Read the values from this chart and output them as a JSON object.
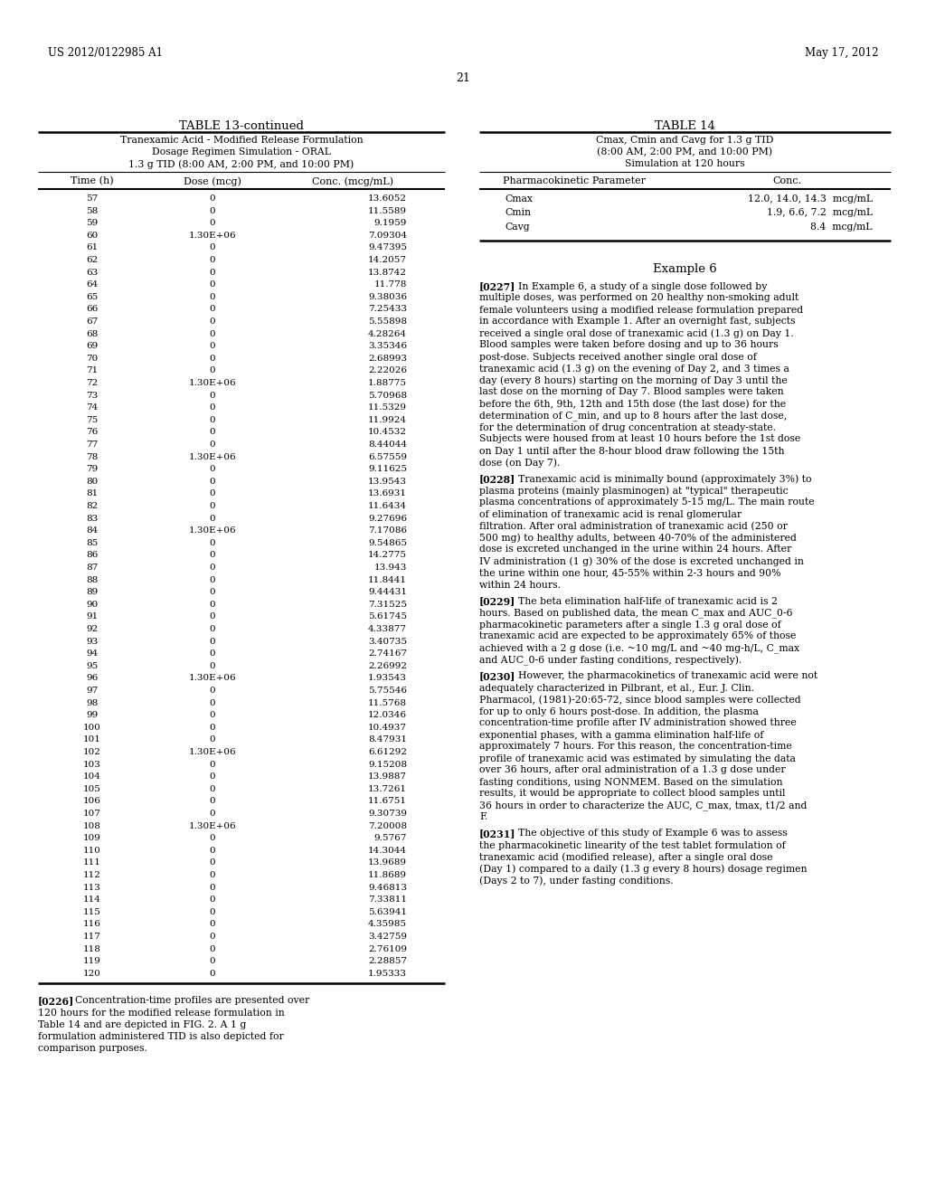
{
  "header_left": "US 2012/0122985 A1",
  "header_right": "May 17, 2012",
  "page_number": "21",
  "table13_title": "TABLE 13-continued",
  "table13_subtitle1": "Tranexamic Acid - Modified Release Formulation",
  "table13_subtitle2": "Dosage Regimen Simulation - ORAL",
  "table13_subtitle3": "1.3 g TID (8:00 AM, 2:00 PM, and 10:00 PM)",
  "table13_col1": "Time (h)",
  "table13_col2": "Dose (mcg)",
  "table13_col3": "Conc. (mcg/mL)",
  "table13_data": [
    [
      57,
      "0",
      "13.6052"
    ],
    [
      58,
      "0",
      "11.5589"
    ],
    [
      59,
      "0",
      "9.1959"
    ],
    [
      60,
      "1.30E+06",
      "7.09304"
    ],
    [
      61,
      "0",
      "9.47395"
    ],
    [
      62,
      "0",
      "14.2057"
    ],
    [
      63,
      "0",
      "13.8742"
    ],
    [
      64,
      "0",
      "11.778"
    ],
    [
      65,
      "0",
      "9.38036"
    ],
    [
      66,
      "0",
      "7.25433"
    ],
    [
      67,
      "0",
      "5.55898"
    ],
    [
      68,
      "0",
      "4.28264"
    ],
    [
      69,
      "0",
      "3.35346"
    ],
    [
      70,
      "0",
      "2.68993"
    ],
    [
      71,
      "0",
      "2.22026"
    ],
    [
      72,
      "1.30E+06",
      "1.88775"
    ],
    [
      73,
      "0",
      "5.70968"
    ],
    [
      74,
      "0",
      "11.5329"
    ],
    [
      75,
      "0",
      "11.9924"
    ],
    [
      76,
      "0",
      "10.4532"
    ],
    [
      77,
      "0",
      "8.44044"
    ],
    [
      78,
      "1.30E+06",
      "6.57559"
    ],
    [
      79,
      "0",
      "9.11625"
    ],
    [
      80,
      "0",
      "13.9543"
    ],
    [
      81,
      "0",
      "13.6931"
    ],
    [
      82,
      "0",
      "11.6434"
    ],
    [
      83,
      "0",
      "9.27696"
    ],
    [
      84,
      "1.30E+06",
      "7.17086"
    ],
    [
      85,
      "0",
      "9.54865"
    ],
    [
      86,
      "0",
      "14.2775"
    ],
    [
      87,
      "0",
      "13.943"
    ],
    [
      88,
      "0",
      "11.8441"
    ],
    [
      89,
      "0",
      "9.44431"
    ],
    [
      90,
      "0",
      "7.31525"
    ],
    [
      91,
      "0",
      "5.61745"
    ],
    [
      92,
      "0",
      "4.33877"
    ],
    [
      93,
      "0",
      "3.40735"
    ],
    [
      94,
      "0",
      "2.74167"
    ],
    [
      95,
      "0",
      "2.26992"
    ],
    [
      96,
      "1.30E+06",
      "1.93543"
    ],
    [
      97,
      "0",
      "5.75546"
    ],
    [
      98,
      "0",
      "11.5768"
    ],
    [
      99,
      "0",
      "12.0346"
    ],
    [
      100,
      "0",
      "10.4937"
    ],
    [
      101,
      "0",
      "8.47931"
    ],
    [
      102,
      "1.30E+06",
      "6.61292"
    ],
    [
      103,
      "0",
      "9.15208"
    ],
    [
      104,
      "0",
      "13.9887"
    ],
    [
      105,
      "0",
      "13.7261"
    ],
    [
      106,
      "0",
      "11.6751"
    ],
    [
      107,
      "0",
      "9.30739"
    ],
    [
      108,
      "1.30E+06",
      "7.20008"
    ],
    [
      109,
      "0",
      "9.5767"
    ],
    [
      110,
      "0",
      "14.3044"
    ],
    [
      111,
      "0",
      "13.9689"
    ],
    [
      112,
      "0",
      "11.8689"
    ],
    [
      113,
      "0",
      "9.46813"
    ],
    [
      114,
      "0",
      "7.33811"
    ],
    [
      115,
      "0",
      "5.63941"
    ],
    [
      116,
      "0",
      "4.35985"
    ],
    [
      117,
      "0",
      "3.42759"
    ],
    [
      118,
      "0",
      "2.76109"
    ],
    [
      119,
      "0",
      "2.28857"
    ],
    [
      120,
      "0",
      "1.95333"
    ]
  ],
  "table14_title": "TABLE 14",
  "table14_subtitle1": "Cmax, Cmin and Cavg for 1.3 g TID",
  "table14_subtitle2": "(8:00 AM, 2:00 PM, and 10:00 PM)",
  "table14_subtitle3": "Simulation at 120 hours",
  "table14_col1": "Pharmacokinetic Parameter",
  "table14_col2": "Conc.",
  "table14_rows": [
    [
      "Cmax",
      "12.0, 14.0, 14.3  mcg/mL"
    ],
    [
      "Cmin",
      "1.9, 6.6, 7.2  mcg/mL"
    ],
    [
      "Cavg",
      "8.4  mcg/mL"
    ]
  ],
  "example6_title": "Example 6",
  "para0227_tag": "[0227]",
  "para0227_body": "In Example 6, a study of a single dose followed by multiple doses, was performed on 20 healthy non-smoking adult female volunteers using a modified release formulation prepared in accordance with Example 1. After an overnight fast, subjects received a single oral dose of tranexamic acid (1.3 g) on Day 1. Blood samples were taken before dosing and up to 36 hours post-dose. Subjects received another single oral dose of tranexamic acid (1.3 g) on the evening of Day 2, and 3 times a day (every 8 hours) starting on the morning of Day 3 until the last dose on the morning of Day 7. Blood samples were taken before the 6th, 9th, 12th and 15th dose (the last dose) for the determination of C_min, and up to 8 hours after the last dose, for the determination of drug concentration at steady-state. Subjects were housed from at least 10 hours before the 1st dose on Day 1 until after the 8-hour blood draw following the 15th dose (on Day 7).",
  "para0228_tag": "[0228]",
  "para0228_body": "Tranexamic acid is minimally bound (approximately 3%) to plasma proteins (mainly plasminogen) at \"typical\" therapeutic plasma concentrations of approximately 5-15 mg/L. The main route of elimination of tranexamic acid is renal glomerular filtration. After oral administration of tranexamic acid (250 or 500 mg) to healthy adults, between 40-70% of the administered dose is excreted unchanged in the urine within 24 hours. After IV administration (1 g) 30% of the dose is excreted unchanged in the urine within one hour, 45-55% within 2-3 hours and 90% within 24 hours.",
  "para0229_tag": "[0229]",
  "para0229_body": "The beta elimination half-life of tranexamic acid is 2 hours. Based on published data, the mean C_max and AUC_0-6 pharmacokinetic parameters after a single 1.3 g oral dose of tranexamic acid are expected to be approximately 65% of those achieved with a 2 g dose (i.e. ~10 mg/L and ~40 mg-h/L, C_max and AUC_0-6 under fasting conditions, respectively).",
  "para0230_tag": "[0230]",
  "para0230_body": "However, the pharmacokinetics of tranexamic acid were not adequately characterized in Pilbrant, et al., Eur. J. Clin. Pharmacol, (1981)-20:65-72, since blood samples were collected for up to only 6 hours post-dose. In addition, the plasma concentration-time profile after IV administration showed three exponential phases, with a gamma elimination half-life of approximately 7 hours. For this reason, the concentration-time profile of tranexamic acid was estimated by simulating the data over 36 hours, after oral administration of a 1.3 g dose under fasting conditions, using NONMEM. Based on the simulation results, it would be appropriate to collect blood samples until 36 hours in order to characterize the AUC, C_max, tmax, t1/2 and F.",
  "para0231_tag": "[0231]",
  "para0231_body": "The objective of this study of Example 6 was to assess the pharmacokinetic linearity of the test tablet formulation of tranexamic acid (modified release), after a single oral dose (Day 1) compared to a daily (1.3 g every 8 hours) dosage regimen (Days 2 to 7), under fasting conditions.",
  "para0226_tag": "[0226]",
  "para0226_body": "Concentration-time profiles are presented over 120 hours for the modified release formulation in Table 14 and are depicted in FIG. 2. A 1 g formulation administered TID is also depicted for comparison purposes."
}
